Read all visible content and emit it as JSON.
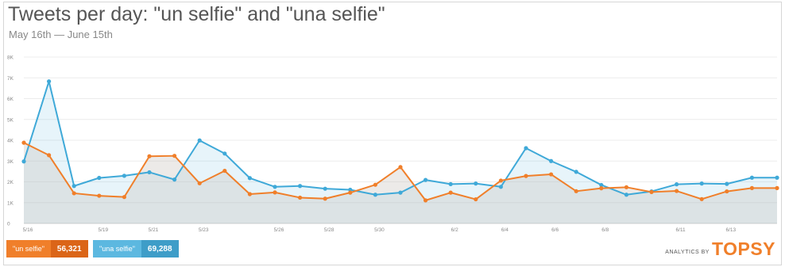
{
  "header": {
    "title": "Tweets per day: \"un selfie\" and \"una selfie\"",
    "subtitle": "May 16th — June 15th"
  },
  "legend": [
    {
      "name": "\"un selfie\"",
      "count": "56,321",
      "color": "#f07f2a"
    },
    {
      "name": "\"una selfie\"",
      "count": "69,288",
      "color": "#5cb8e0"
    }
  ],
  "branding": {
    "prefix": "ANALYTICS BY",
    "logo": "TOPSY",
    "color": "#f07f2a"
  },
  "chart_data": {
    "type": "area",
    "title": "Tweets per day: \"un selfie\" and \"una selfie\"",
    "subtitle": "May 16th — June 15th",
    "xlabel": "",
    "ylabel": "",
    "ylim": [
      0,
      8000
    ],
    "yticks": [
      {
        "value": 0,
        "label": "0"
      },
      {
        "value": 1000,
        "label": "1K"
      },
      {
        "value": 2000,
        "label": "2K"
      },
      {
        "value": 3000,
        "label": "3K"
      },
      {
        "value": 4000,
        "label": "4K"
      },
      {
        "value": 5000,
        "label": "5K"
      },
      {
        "value": 6000,
        "label": "6K"
      },
      {
        "value": 7000,
        "label": "7K"
      },
      {
        "value": 8000,
        "label": "8K"
      }
    ],
    "x": [
      "5/16",
      "5/17",
      "5/18",
      "5/19",
      "5/20",
      "5/21",
      "5/22",
      "5/23",
      "5/24",
      "5/25",
      "5/26",
      "5/27",
      "5/28",
      "5/29",
      "5/30",
      "5/31",
      "6/1",
      "6/2",
      "6/3",
      "6/4",
      "6/5",
      "6/6",
      "6/7",
      "6/8",
      "6/9",
      "6/10",
      "6/11",
      "6/12",
      "6/13",
      "6/14",
      "6/15"
    ],
    "xtick_labels": [
      "5/16",
      "5/19",
      "5/21",
      "5/23",
      "5/26",
      "5/28",
      "5/30",
      "6/2",
      "6/4",
      "6/6",
      "6/8",
      "6/11",
      "6/13"
    ],
    "grid": true,
    "legend_position": "bottom-left",
    "series": [
      {
        "name": "\"un selfie\"",
        "color": "#f07f2a",
        "values": [
          3880,
          3280,
          1450,
          1330,
          1270,
          3230,
          3250,
          1930,
          2530,
          1410,
          1490,
          1240,
          1190,
          1480,
          1860,
          2710,
          1110,
          1480,
          1160,
          2060,
          2280,
          2360,
          1550,
          1690,
          1740,
          1510,
          1560,
          1170,
          1540,
          1700,
          1700
        ]
      },
      {
        "name": "\"una selfie\"",
        "color": "#3fa9d8",
        "values": [
          2980,
          6830,
          1800,
          2190,
          2290,
          2460,
          2110,
          3990,
          3360,
          2180,
          1760,
          1800,
          1670,
          1620,
          1380,
          1480,
          2090,
          1890,
          1920,
          1760,
          3620,
          3000,
          2480,
          1850,
          1380,
          1540,
          1880,
          1920,
          1900,
          2200,
          2200
        ]
      }
    ]
  }
}
